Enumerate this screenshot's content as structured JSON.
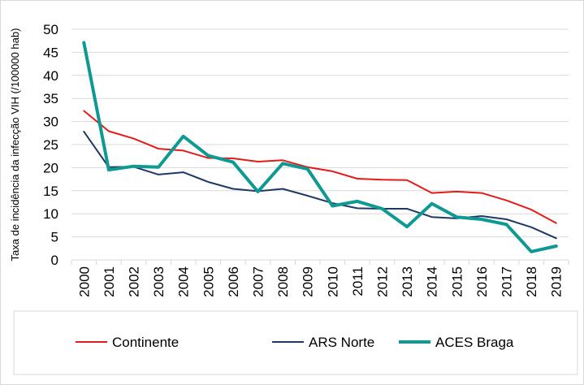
{
  "chart_data": {
    "type": "line",
    "title": "",
    "xlabel": "",
    "ylabel": "Taxa de incidência da infecção VIH  (/100000 hab)",
    "ylim": [
      0,
      50
    ],
    "yticks": [
      0,
      5,
      10,
      15,
      20,
      25,
      30,
      35,
      40,
      45,
      50
    ],
    "categories": [
      "2000",
      "2001",
      "2002",
      "2003",
      "2004",
      "2005",
      "2006",
      "2007",
      "2008",
      "2009",
      "2010",
      "2011",
      "2012",
      "2013",
      "2014",
      "2015",
      "2016",
      "2017",
      "2018",
      "2019"
    ],
    "grid": true,
    "legend_position": "bottom",
    "series": [
      {
        "name": "Continente",
        "color": "#e31b1b",
        "width": 2,
        "values": [
          32.3,
          27.9,
          26.3,
          24.1,
          23.7,
          22.1,
          22.0,
          21.3,
          21.6,
          20.1,
          19.2,
          17.6,
          17.4,
          17.3,
          14.5,
          14.8,
          14.5,
          12.9,
          10.9,
          8.0
        ]
      },
      {
        "name": "ARS Norte",
        "color": "#1f3864",
        "width": 2,
        "values": [
          27.8,
          20.1,
          20.2,
          18.5,
          19.0,
          16.9,
          15.4,
          14.9,
          15.4,
          13.9,
          12.3,
          11.2,
          11.1,
          11.1,
          9.3,
          9.0,
          9.5,
          8.8,
          7.1,
          4.7
        ]
      },
      {
        "name": "ACES Braga",
        "color": "#0e9a92",
        "width": 4,
        "values": [
          47.1,
          19.5,
          20.3,
          20.1,
          26.8,
          22.6,
          21.2,
          14.8,
          20.9,
          19.7,
          11.7,
          12.7,
          11.1,
          7.2,
          12.2,
          9.3,
          8.8,
          7.7,
          1.8,
          3.0
        ]
      }
    ]
  }
}
